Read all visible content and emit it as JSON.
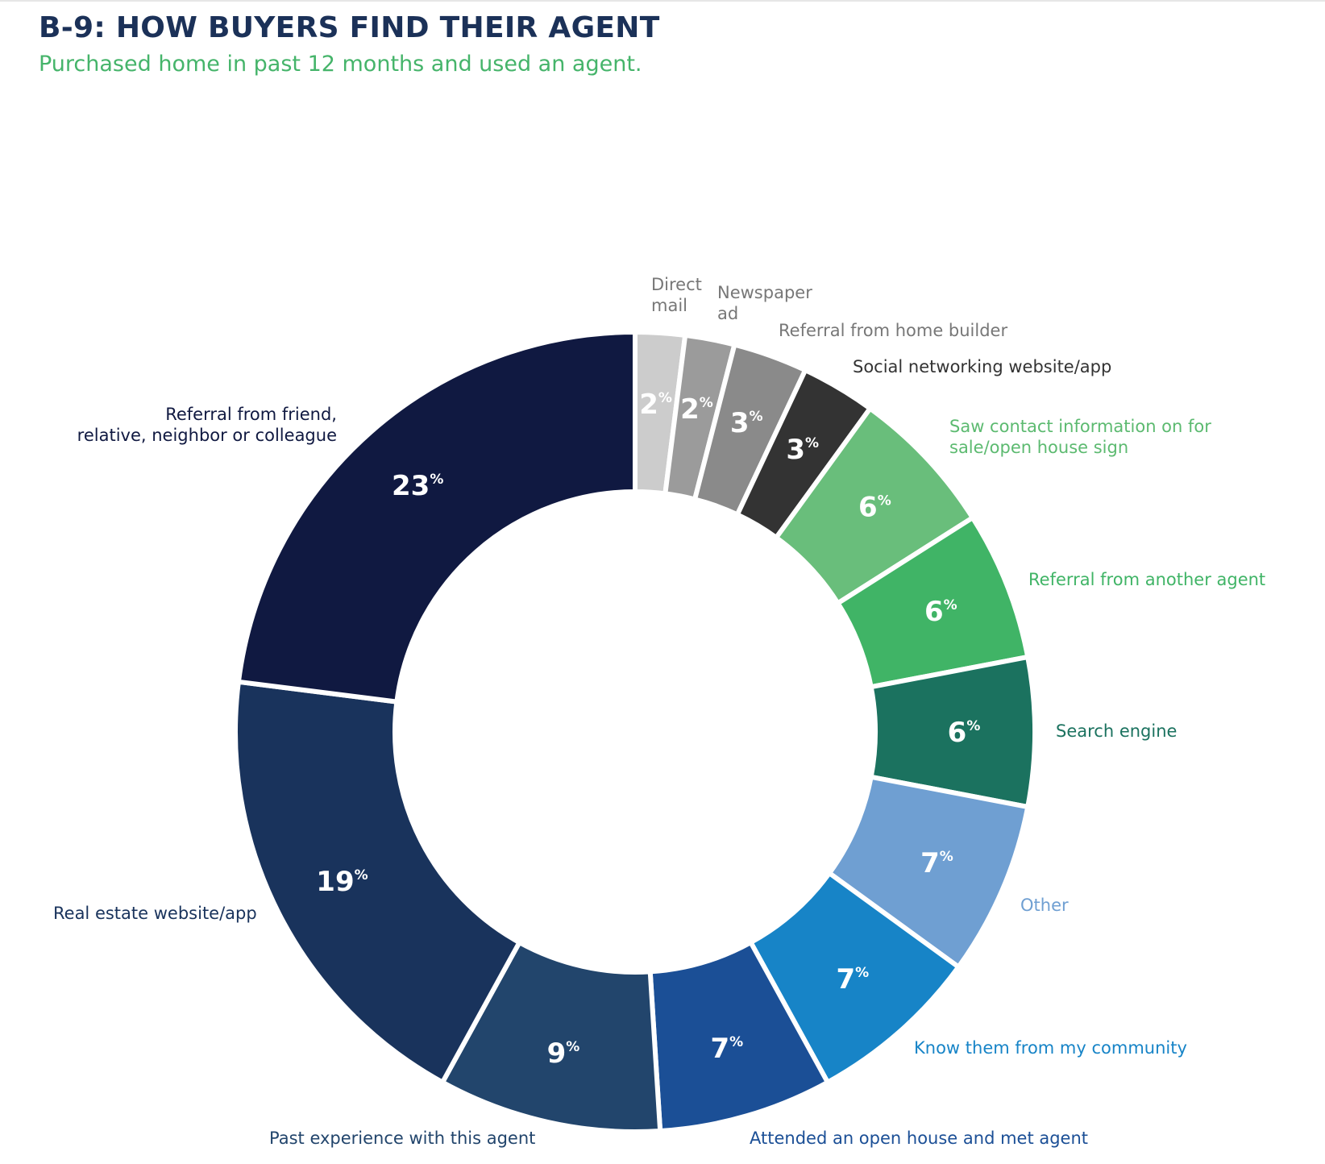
{
  "title": "B-9: HOW BUYERS FIND THEIR AGENT",
  "subtitle": "Purchased home in past 12 months and used an agent.",
  "chart_data": {
    "type": "pie",
    "variant": "donut",
    "title": "B-9: HOW BUYERS FIND THEIR AGENT",
    "subtitle": "Purchased home in past 12 months and used an agent.",
    "unit": "%",
    "slices": [
      {
        "label": "Direct mail",
        "value": 2,
        "color": "#cccccc",
        "label_color": "#777777"
      },
      {
        "label": "Newspaper ad",
        "value": 2,
        "color": "#9b9b9b",
        "label_color": "#777777"
      },
      {
        "label": "Referral from home builder",
        "value": 3,
        "color": "#8a8a8a",
        "label_color": "#777777"
      },
      {
        "label": "Social networking website/app",
        "value": 3,
        "color": "#333333",
        "label_color": "#333333"
      },
      {
        "label": "Saw contact information on for sale/open house sign",
        "value": 6,
        "color": "#69be7b",
        "label_color": "#5cba70"
      },
      {
        "label": "Referral from another agent",
        "value": 6,
        "color": "#40b466",
        "label_color": "#40b466"
      },
      {
        "label": "Search engine",
        "value": 6,
        "color": "#1b725f",
        "label_color": "#1b725f"
      },
      {
        "label": "Other",
        "value": 7,
        "color": "#6f9fd2",
        "label_color": "#6f9fd2"
      },
      {
        "label": "Know them from my community",
        "value": 7,
        "color": "#1784c7",
        "label_color": "#1784c7"
      },
      {
        "label": "Attended an open house and met agent",
        "value": 7,
        "color": "#1b4f96",
        "label_color": "#1b4f96"
      },
      {
        "label": "Past experience with this agent",
        "value": 9,
        "color": "#22456c",
        "label_color": "#22456c"
      },
      {
        "label": "Real estate website/app",
        "value": 19,
        "color": "#19335c",
        "label_color": "#19335c"
      },
      {
        "label": "Referral from friend, relative, neighbor or colleague",
        "value": 23,
        "color": "#101941",
        "label_color": "#101941"
      }
    ],
    "legend": "none"
  }
}
